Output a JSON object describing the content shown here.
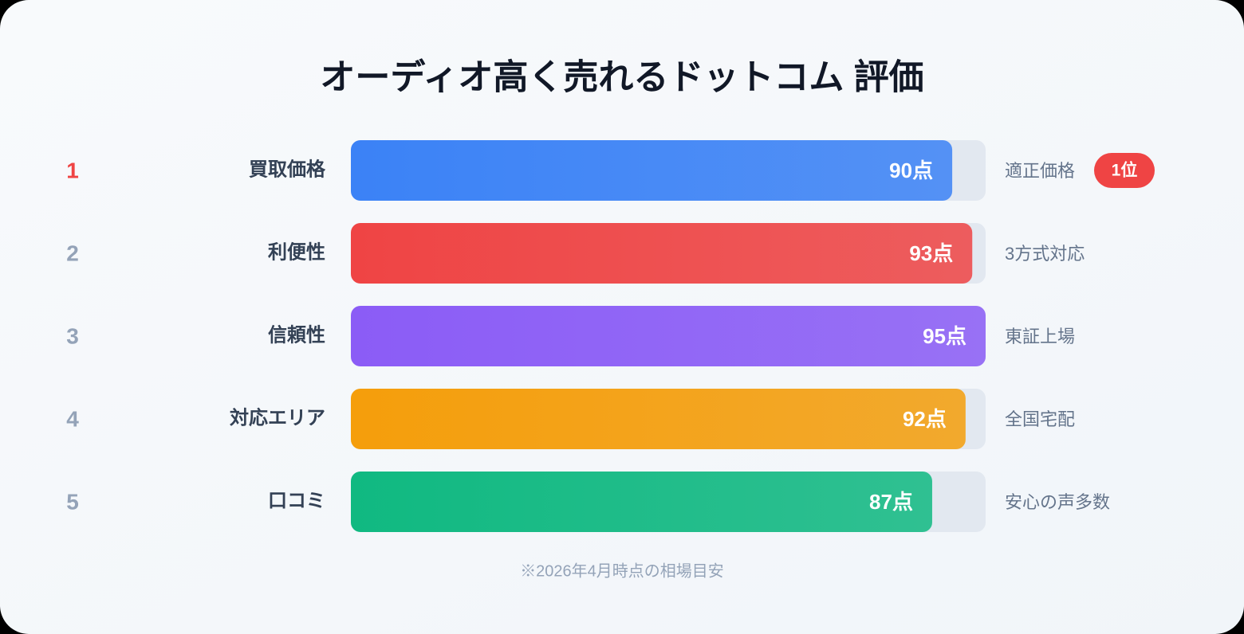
{
  "chart_data": {
    "type": "bar",
    "orientation": "horizontal",
    "title": "オーディオ高く売れるドットコム 評価",
    "ranks": [
      1,
      2,
      3,
      4,
      5
    ],
    "categories": [
      "買取価格",
      "利便性",
      "信頼性",
      "対応エリア",
      "口コミ"
    ],
    "values": [
      90,
      93,
      95,
      92,
      87
    ],
    "value_labels": [
      "90点",
      "93点",
      "95点",
      "92点",
      "87点"
    ],
    "colors": [
      "#3b82f6",
      "#ef4444",
      "#8b5cf6",
      "#f59e0b",
      "#10b981"
    ],
    "notes": [
      "適正価格",
      "3方式対応",
      "東証上場",
      "全国宅配",
      "安心の声多数"
    ],
    "badges": [
      "1位",
      null,
      null,
      null,
      null
    ],
    "xlim": [
      0,
      95
    ],
    "footnote": "※2026年4月時点の相場目安"
  }
}
